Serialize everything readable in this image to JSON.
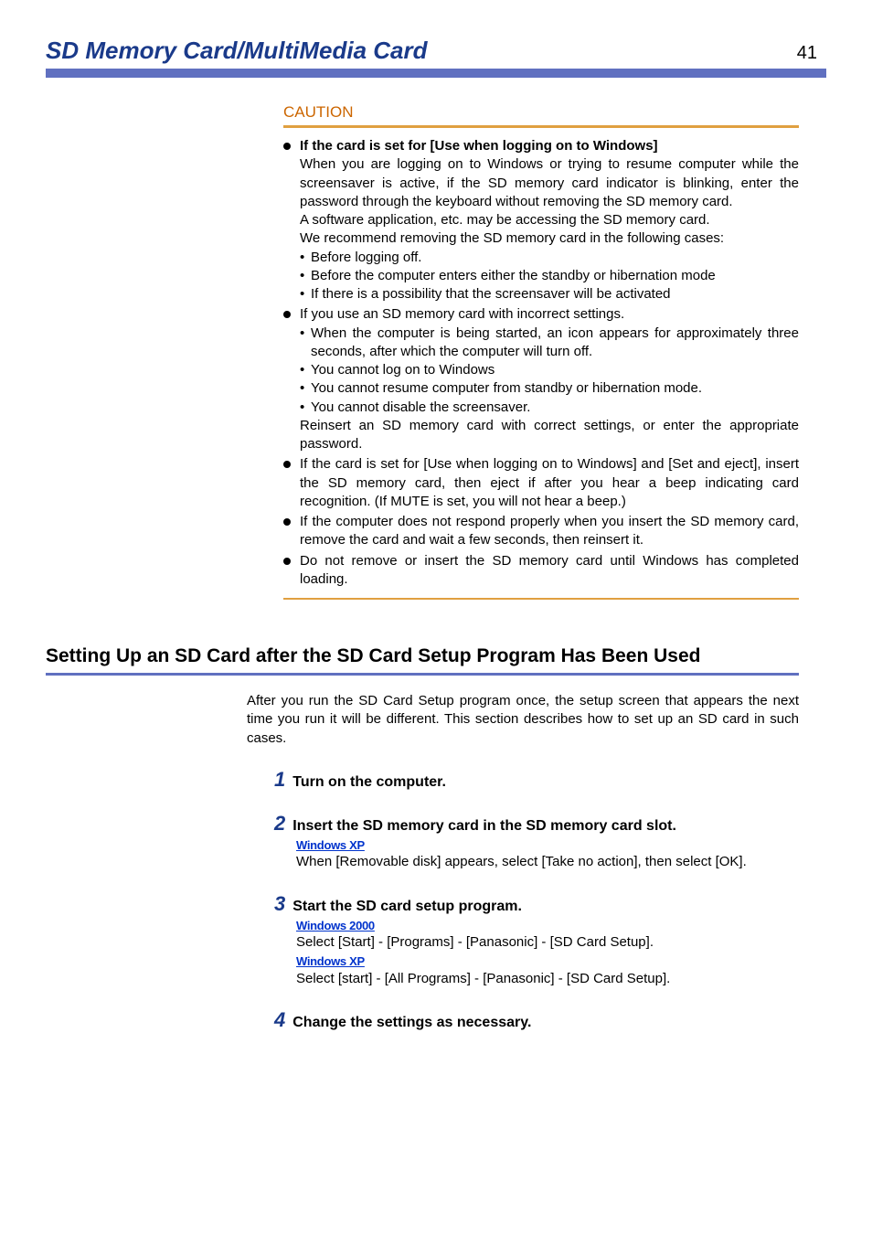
{
  "header": {
    "title": "SD Memory Card/MultiMedia Card",
    "page_number": "41"
  },
  "colors": {
    "title_color": "#1a3a8a",
    "header_rule": "#6070c0",
    "caution_color": "#cc6600",
    "orange_rule": "#e0a040",
    "os_label_color": "#0033cc",
    "step_num_color": "#1a3a8a"
  },
  "caution": {
    "label": "CAUTION",
    "items": [
      {
        "bold_lead": "If the card is set for [Use when logging on to Windows]",
        "paragraphs": [
          "When you are logging on to Windows or trying to resume computer while the screensaver is active, if the SD memory card indicator is blinking, enter the password through the keyboard without removing the SD memory card.",
          "A software application, etc. may be accessing the SD memory card.",
          "We recommend removing the SD memory card in the following cases:"
        ],
        "dots": [
          "Before logging off.",
          "Before the computer enters either the standby or hibernation mode",
          "If there is a possibility that the screensaver will be activated"
        ]
      },
      {
        "lead": "If you use an SD memory card with incorrect settings.",
        "dots": [
          "When the computer is being started, an icon appears for approximately three seconds, after which the computer will turn off.",
          "You cannot log on to Windows",
          "You cannot resume computer from standby or hibernation mode.",
          "You cannot disable the screensaver."
        ],
        "after": "Reinsert an SD memory card with correct settings, or enter the appropriate password."
      },
      {
        "lead": "If the card is set for [Use when logging on to Windows] and [Set and eject], insert the SD memory card, then eject if after you hear a beep indicating card recognition. (If MUTE is set, you will not hear a beep.)"
      },
      {
        "lead": "If the computer does not respond properly when you insert the SD memory card, remove the card and wait a few seconds, then reinsert it."
      },
      {
        "lead": "Do not remove or insert the SD memory card until Windows has completed loading."
      }
    ]
  },
  "section": {
    "heading": "Setting Up an SD Card after the SD Card Setup Program Has Been Used",
    "intro": "After you run the SD Card Setup program once, the setup screen that appears the next time you run it will be different. This section describes how to set up an SD card in such cases.",
    "steps": [
      {
        "num": "1",
        "title": "Turn on the computer."
      },
      {
        "num": "2",
        "title": "Insert the SD memory card in the SD memory card slot.",
        "blocks": [
          {
            "os": "Windows XP",
            "text": "When [Removable disk] appears, select [Take no action], then select [OK]."
          }
        ]
      },
      {
        "num": "3",
        "title": "Start the SD card setup program.",
        "blocks": [
          {
            "os": "Windows 2000",
            "text": "Select [Start] - [Programs] - [Panasonic] - [SD Card Setup]."
          },
          {
            "os": "Windows XP",
            "text": "Select [start] - [All Programs] - [Panasonic] - [SD Card Setup]."
          }
        ]
      },
      {
        "num": "4",
        "title": "Change the settings as necessary."
      }
    ]
  }
}
